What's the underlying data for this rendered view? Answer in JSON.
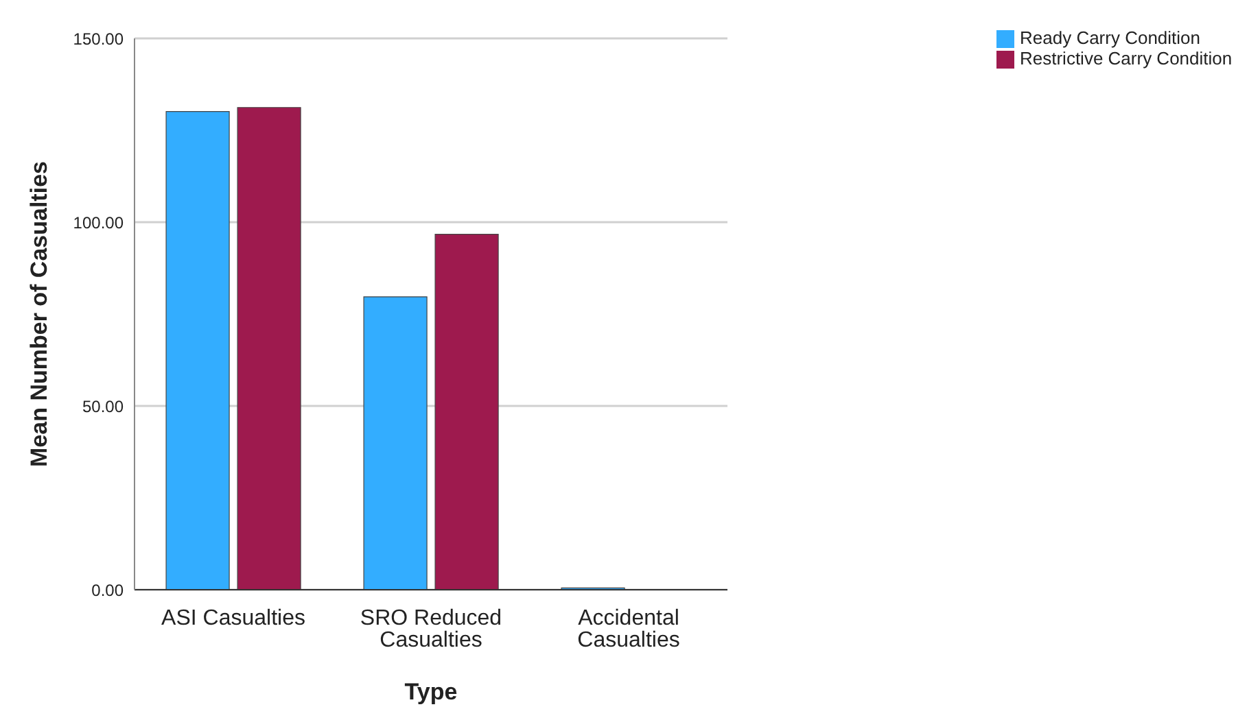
{
  "chart_data": {
    "type": "bar",
    "xlabel": "Type",
    "ylabel": "Mean Number of Casualties",
    "categories": [
      "ASI Casualties",
      "SRO Reduced Casualties",
      "Accidental Casualties"
    ],
    "series": [
      {
        "name": "Ready Carry Condition",
        "color": "#33adff",
        "values": [
          130.1,
          79.7,
          0.5
        ]
      },
      {
        "name": "Restrictive Carry Condition",
        "color": "#9e1a4e",
        "values": [
          131.2,
          96.7,
          0
        ]
      }
    ],
    "ylim": [
      0,
      150
    ],
    "yticks": [
      {
        "value": 0,
        "label": "0.00"
      },
      {
        "value": 50,
        "label": "50.00"
      },
      {
        "value": 100,
        "label": "100.00"
      },
      {
        "value": 150,
        "label": "150.00"
      }
    ],
    "grid": "y",
    "legend": "top right"
  }
}
